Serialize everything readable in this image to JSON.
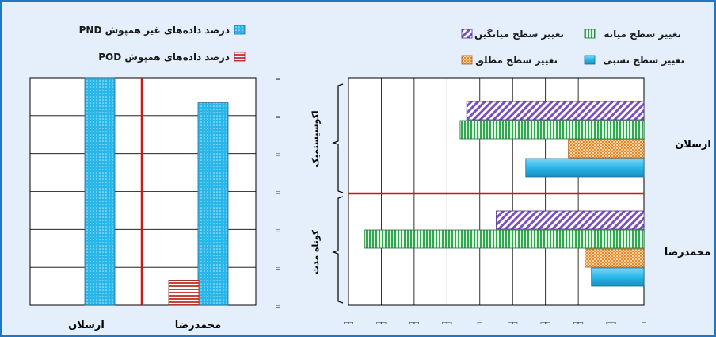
{
  "colors": {
    "frame": "#1f77c4",
    "background": "#e4effb",
    "divider": "#d01515",
    "pnd": "#29b6e8",
    "pod": "#c8443a",
    "avg": "#7a4fc0",
    "mid": "#2fa84f",
    "abs": "#e8872a",
    "rel": "#29b6e8"
  },
  "left_chart": {
    "legend": [
      {
        "label": "درصد داده‌های غیر همپوش PND",
        "color": "#29b6e8"
      },
      {
        "label": "درصد داده‌های همپوش POD",
        "color": "#c8443a"
      }
    ],
    "y_tick_labels": [
      "▭",
      "▭",
      "▭",
      "▭",
      "▭",
      "▭",
      "▭"
    ]
  },
  "right_chart": {
    "legend": [
      {
        "label": "تغییر سطح میانگین",
        "color": "#7a4fc0"
      },
      {
        "label": "تغییر سطح میانه",
        "color": "#2fa84f"
      },
      {
        "label": "تغییر سطح مطلق",
        "color": "#e8872a"
      },
      {
        "label": "تغییر سطح نسبی",
        "color": "#29b6e8"
      }
    ],
    "group_labels": [
      "اکوسیستمیک",
      "کوتاه مدت"
    ],
    "x_tick_labels": [
      "▭▭",
      "▭▭",
      "▭▭",
      "▭▭",
      "▭",
      "▭▭",
      "▭▭",
      "▭▭",
      "▭▭",
      "▭"
    ]
  },
  "chart_data": [
    {
      "type": "bar",
      "categories": [
        "ارسلان",
        "محمدرضا"
      ],
      "series": [
        {
          "name": "درصد داده‌های غیر همپوش PND",
          "values": [
            100,
            89
          ]
        },
        {
          "name": "درصد داده‌های همپوش POD",
          "values": [
            0,
            11
          ]
        }
      ],
      "ylim": [
        0,
        100
      ],
      "grid": true
    },
    {
      "type": "bar",
      "orientation": "horizontal",
      "categories": [
        "ارسلان",
        "محمدرضا"
      ],
      "series": [
        {
          "name": "تغییر سطح میانگین",
          "values": [
            -5.4,
            -4.5
          ]
        },
        {
          "name": "تغییر سطح میانه",
          "values": [
            -5.6,
            -8.5
          ]
        },
        {
          "name": "تغییر سطح مطلق",
          "values": [
            -2.3,
            -1.8
          ]
        },
        {
          "name": "تغییر سطح نسبی",
          "values": [
            -3.6,
            -1.6
          ]
        }
      ],
      "xlim": [
        -9,
        0
      ],
      "grid": true
    }
  ]
}
